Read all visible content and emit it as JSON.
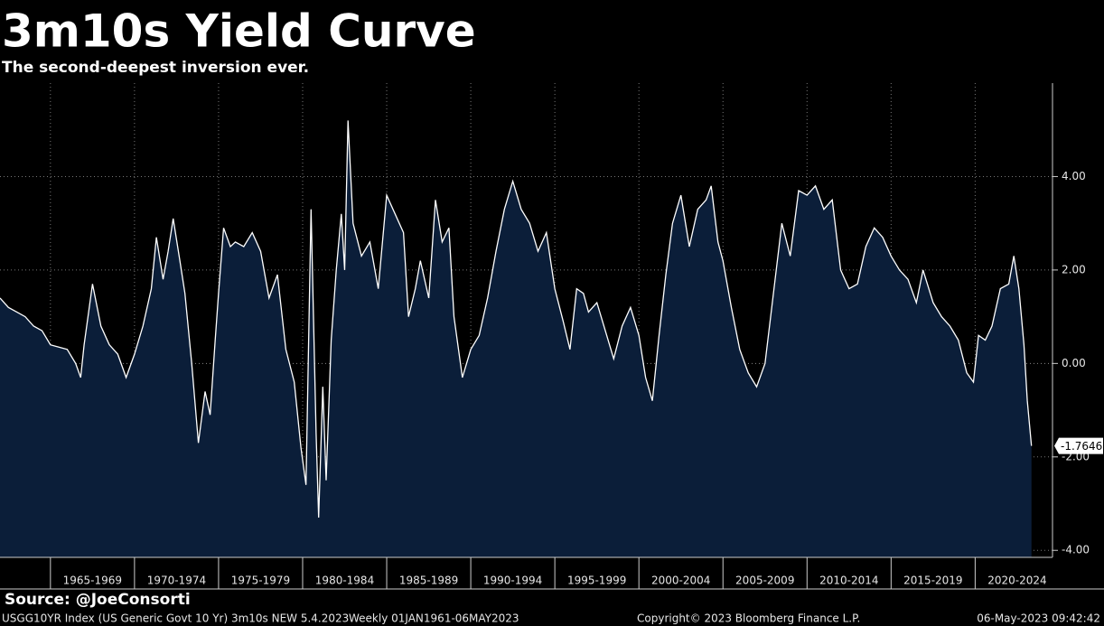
{
  "chart_data": {
    "type": "area",
    "title": "3m10s Yield Curve",
    "subtitle": "The second-deepest inversion ever.",
    "source": "Source: @JoeConsorti",
    "footer": [
      "USGG10YR Index (US Generic Govt 10 Yr) 3m10s NEW 5.4.2023",
      "Weekly 01JAN1961-06MAY2023",
      "Copyright© 2023 Bloomberg Finance L.P.",
      "06-May-2023 09:42:42"
    ],
    "xlim": [
      1962,
      2024.6
    ],
    "xticks": [
      {
        "value": 1965,
        "label": "1965-1969"
      },
      {
        "value": 1970,
        "label": "1970-1974"
      },
      {
        "value": 1975,
        "label": "1975-1979"
      },
      {
        "value": 1980,
        "label": "1980-1984"
      },
      {
        "value": 1985,
        "label": "1985-1989"
      },
      {
        "value": 1990,
        "label": "1990-1994"
      },
      {
        "value": 1995,
        "label": "1995-1999"
      },
      {
        "value": 2000,
        "label": "2000-2004"
      },
      {
        "value": 2005,
        "label": "2005-2009"
      },
      {
        "value": 2010,
        "label": "2010-2014"
      },
      {
        "value": 2015,
        "label": "2015-2019"
      },
      {
        "value": 2020,
        "label": "2020-2024"
      }
    ],
    "ylim": [
      -4.15,
      6
    ],
    "yticks": [
      {
        "value": -4,
        "label": "-4.00"
      },
      {
        "value": -2,
        "label": "-2.00"
      },
      {
        "value": 0,
        "label": "0.00"
      },
      {
        "value": 2,
        "label": "2.00"
      },
      {
        "value": 4,
        "label": "4.00"
      }
    ],
    "grid": true,
    "x": [
      1962.0,
      1962.5,
      1963.0,
      1963.5,
      1964.0,
      1964.5,
      1965.0,
      1965.5,
      1966.0,
      1966.5,
      1966.8,
      1967.0,
      1967.5,
      1968.0,
      1968.5,
      1969.0,
      1969.5,
      1970.0,
      1970.5,
      1971.0,
      1971.3,
      1971.7,
      1972.0,
      1972.3,
      1972.7,
      1973.0,
      1973.4,
      1973.8,
      1974.2,
      1974.5,
      1974.8,
      1975.0,
      1975.3,
      1975.7,
      1976.0,
      1976.5,
      1977.0,
      1977.5,
      1978.0,
      1978.5,
      1979.0,
      1979.5,
      1979.9,
      1980.2,
      1980.5,
      1980.8,
      1980.95,
      1981.2,
      1981.4,
      1981.7,
      1982.0,
      1982.3,
      1982.5,
      1982.7,
      1983.0,
      1983.5,
      1984.0,
      1984.5,
      1985.0,
      1985.5,
      1986.0,
      1986.3,
      1986.7,
      1987.0,
      1987.5,
      1987.9,
      1988.3,
      1988.7,
      1989.0,
      1989.5,
      1990.0,
      1990.5,
      1991.0,
      1991.5,
      1992.0,
      1992.5,
      1993.0,
      1993.5,
      1994.0,
      1994.5,
      1995.0,
      1995.5,
      1995.9,
      1996.3,
      1996.7,
      1997.0,
      1997.5,
      1998.0,
      1998.5,
      1999.0,
      1999.5,
      2000.0,
      2000.4,
      2000.8,
      2001.2,
      2001.6,
      2002.0,
      2002.5,
      2003.0,
      2003.5,
      2004.0,
      2004.3,
      2004.7,
      2005.0,
      2005.5,
      2006.0,
      2006.5,
      2007.0,
      2007.5,
      2008.0,
      2008.5,
      2009.0,
      2009.5,
      2010.0,
      2010.5,
      2011.0,
      2011.5,
      2012.0,
      2012.5,
      2013.0,
      2013.5,
      2014.0,
      2014.5,
      2015.0,
      2015.5,
      2016.0,
      2016.5,
      2016.9,
      2017.5,
      2018.0,
      2018.5,
      2019.0,
      2019.5,
      2019.9,
      2020.2,
      2020.6,
      2021.0,
      2021.5,
      2022.0,
      2022.3,
      2022.6,
      2022.9,
      2023.1,
      2023.35
    ],
    "series": [
      {
        "name": "3m10s",
        "color": "#ffffff",
        "fill": "#0b1e39",
        "values": [
          1.4,
          1.2,
          1.1,
          1.0,
          0.8,
          0.7,
          0.4,
          0.35,
          0.3,
          0.0,
          -0.3,
          0.4,
          1.7,
          0.8,
          0.4,
          0.2,
          -0.3,
          0.2,
          0.8,
          1.6,
          2.7,
          1.8,
          2.4,
          3.1,
          2.2,
          1.5,
          0.0,
          -1.7,
          -0.6,
          -1.1,
          0.5,
          1.5,
          2.9,
          2.5,
          2.6,
          2.5,
          2.8,
          2.4,
          1.4,
          1.9,
          0.3,
          -0.4,
          -1.8,
          -2.6,
          3.3,
          -1.5,
          -3.3,
          -0.5,
          -2.5,
          0.5,
          2.0,
          3.2,
          2.0,
          5.2,
          3.0,
          2.3,
          2.6,
          1.6,
          3.6,
          3.2,
          2.8,
          1.0,
          1.6,
          2.2,
          1.4,
          3.5,
          2.6,
          2.9,
          1.0,
          -0.3,
          0.3,
          0.6,
          1.4,
          2.4,
          3.3,
          3.9,
          3.3,
          3.0,
          2.4,
          2.8,
          1.6,
          0.9,
          0.3,
          1.6,
          1.5,
          1.1,
          1.3,
          0.7,
          0.1,
          0.8,
          1.2,
          0.6,
          -0.3,
          -0.8,
          0.6,
          1.9,
          3.0,
          3.6,
          2.5,
          3.3,
          3.5,
          3.8,
          2.6,
          2.2,
          1.2,
          0.3,
          -0.2,
          -0.5,
          0.0,
          1.5,
          3.0,
          2.3,
          3.7,
          3.6,
          3.8,
          3.3,
          3.5,
          2.0,
          1.6,
          1.7,
          2.5,
          2.9,
          2.7,
          2.3,
          2.0,
          1.8,
          1.3,
          2.0,
          1.3,
          1.0,
          0.8,
          0.5,
          -0.2,
          -0.4,
          0.6,
          0.5,
          0.8,
          1.6,
          1.7,
          2.3,
          1.6,
          0.4,
          -0.8,
          -1.7646
        ]
      }
    ]
  }
}
